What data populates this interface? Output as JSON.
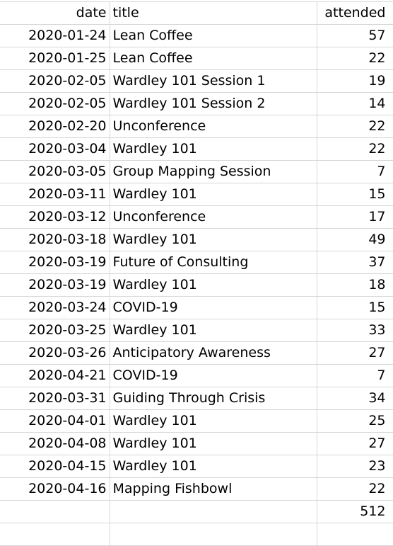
{
  "columns": {
    "date": "date",
    "title": "title",
    "attended": "attended"
  },
  "rows": [
    {
      "date": "2020-01-24",
      "title": "Lean Coffee",
      "attended": "57"
    },
    {
      "date": "2020-01-25",
      "title": "Lean Coffee",
      "attended": "22"
    },
    {
      "date": "2020-02-05",
      "title": "Wardley 101 Session 1",
      "attended": "19"
    },
    {
      "date": "2020-02-05",
      "title": "Wardley 101 Session 2",
      "attended": "14"
    },
    {
      "date": "2020-02-20",
      "title": "Unconference",
      "attended": "22"
    },
    {
      "date": "2020-03-04",
      "title": "Wardley 101",
      "attended": "22"
    },
    {
      "date": "2020-03-05",
      "title": "Group Mapping Session",
      "attended": "7"
    },
    {
      "date": "2020-03-11",
      "title": "Wardley 101",
      "attended": "15"
    },
    {
      "date": "2020-03-12",
      "title": "Unconference",
      "attended": "17"
    },
    {
      "date": "2020-03-18",
      "title": "Wardley 101",
      "attended": "49"
    },
    {
      "date": "2020-03-19",
      "title": "Future of Consulting",
      "attended": "37"
    },
    {
      "date": "2020-03-19",
      "title": "Wardley 101",
      "attended": "18"
    },
    {
      "date": "2020-03-24",
      "title": "COVID-19",
      "attended": "15"
    },
    {
      "date": "2020-03-25",
      "title": "Wardley 101",
      "attended": "33"
    },
    {
      "date": "2020-03-26",
      "title": "Anticipatory Awareness",
      "attended": "27"
    },
    {
      "date": "2020-04-21",
      "title": "COVID-19",
      "attended": "7"
    },
    {
      "date": "2020-03-31",
      "title": "Guiding Through Crisis",
      "attended": "34"
    },
    {
      "date": "2020-04-01",
      "title": "Wardley 101",
      "attended": "25"
    },
    {
      "date": "2020-04-08",
      "title": "Wardley 101",
      "attended": "27"
    },
    {
      "date": "2020-04-15",
      "title": "Wardley 101",
      "attended": "23"
    },
    {
      "date": "2020-04-16",
      "title": "Mapping Fishbowl",
      "attended": "22"
    }
  ],
  "total": {
    "date": "",
    "title": "",
    "attended": "512"
  }
}
